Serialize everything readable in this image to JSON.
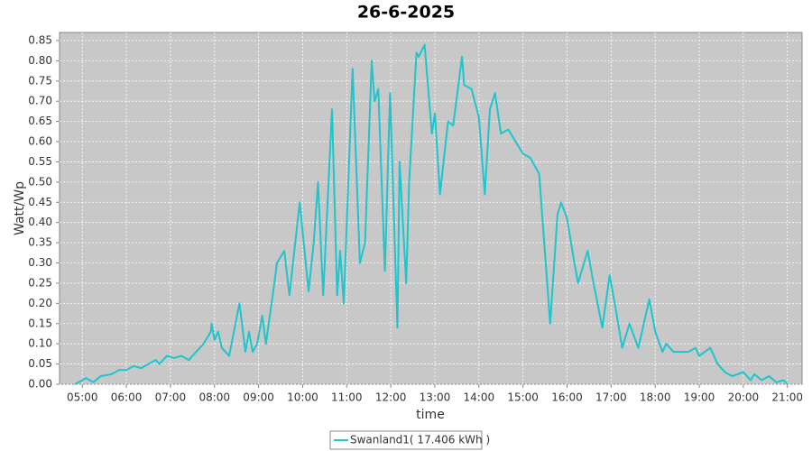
{
  "chart_data": {
    "type": "line",
    "title": "26-6-2025",
    "x_label": "time",
    "y_label": "Watt/Wp",
    "xlim": [
      "04:29",
      "21:20"
    ],
    "xticks": [
      "05:00",
      "06:00",
      "07:00",
      "08:00",
      "09:00",
      "10:00",
      "11:00",
      "12:00",
      "13:00",
      "14:00",
      "15:00",
      "16:00",
      "17:00",
      "18:00",
      "19:00",
      "20:00",
      "21:00"
    ],
    "ylim": [
      0,
      0.87
    ],
    "yticks": [
      {
        "value": 0,
        "label": "0.00"
      },
      {
        "value": 0.05,
        "label": "0.05"
      },
      {
        "value": 0.1,
        "label": "0.10"
      },
      {
        "value": 0.15,
        "label": "0.15"
      },
      {
        "value": 0.2,
        "label": "0.20"
      },
      {
        "value": 0.25,
        "label": "0.25"
      },
      {
        "value": 0.3,
        "label": "0.30"
      },
      {
        "value": 0.35,
        "label": "0.35"
      },
      {
        "value": 0.4,
        "label": "0.40"
      },
      {
        "value": 0.45,
        "label": "0.45"
      },
      {
        "value": 0.5,
        "label": "0.50"
      },
      {
        "value": 0.55,
        "label": "0.55"
      },
      {
        "value": 0.6,
        "label": "0.60"
      },
      {
        "value": 0.65,
        "label": "0.65"
      },
      {
        "value": 0.7,
        "label": "0.70"
      },
      {
        "value": 0.75,
        "label": "0.75"
      },
      {
        "value": 0.8,
        "label": "0.80"
      },
      {
        "value": 0.85,
        "label": "0.85"
      }
    ],
    "grid": true,
    "legend": "bottom",
    "background": "#c8c8c8",
    "x": [
      "04:50",
      "05:00",
      "05:05",
      "05:15",
      "05:25",
      "05:40",
      "05:50",
      "06:00",
      "06:10",
      "06:20",
      "06:30",
      "06:40",
      "06:45",
      "06:55",
      "07:05",
      "07:15",
      "07:25",
      "07:35",
      "07:45",
      "07:55",
      "07:56",
      "08:00",
      "08:05",
      "08:10",
      "08:20",
      "08:34",
      "08:42",
      "08:47",
      "08:52",
      "08:58",
      "09:05",
      "09:10",
      "09:20",
      "09:25",
      "09:35",
      "09:42",
      "09:56",
      "10:08",
      "10:15",
      "10:21",
      "10:28",
      "10:40",
      "10:47",
      "10:51",
      "10:56",
      "11:08",
      "11:18",
      "11:25",
      "11:34",
      "11:38",
      "11:43",
      "11:52",
      "11:59",
      "12:09",
      "12:12",
      "12:21",
      "12:25",
      "12:35",
      "12:38",
      "12:46",
      "12:56",
      "13:00",
      "13:07",
      "13:18",
      "13:25",
      "13:37",
      "13:40",
      "13:50",
      "14:00",
      "14:08",
      "14:15",
      "14:22",
      "14:30",
      "14:40",
      "14:50",
      "15:00",
      "15:10",
      "15:22",
      "15:37",
      "15:47",
      "15:52",
      "16:00",
      "16:10",
      "16:15",
      "16:28",
      "16:35",
      "16:48",
      "16:58",
      "17:05",
      "17:15",
      "17:25",
      "17:37",
      "17:52",
      "18:00",
      "18:10",
      "18:15",
      "18:25",
      "18:45",
      "18:55",
      "19:00",
      "19:15",
      "19:25",
      "19:35",
      "19:45",
      "20:00",
      "20:10",
      "20:15",
      "20:25",
      "20:35",
      "20:45",
      "20:55",
      "21:00"
    ],
    "series": [
      {
        "name": "Swanland1( 17.406 kWh )",
        "color": "#1cc6cc",
        "values": [
          0,
          0.01,
          0.015,
          0.005,
          0.02,
          0.025,
          0.035,
          0.035,
          0.045,
          0.04,
          0.05,
          0.06,
          0.05,
          0.07,
          0.065,
          0.07,
          0.06,
          0.08,
          0.1,
          0.13,
          0.15,
          0.11,
          0.13,
          0.09,
          0.07,
          0.2,
          0.08,
          0.13,
          0.08,
          0.1,
          0.17,
          0.1,
          0.23,
          0.3,
          0.33,
          0.22,
          0.45,
          0.23,
          0.35,
          0.5,
          0.22,
          0.68,
          0.22,
          0.33,
          0.2,
          0.78,
          0.3,
          0.35,
          0.8,
          0.7,
          0.73,
          0.28,
          0.72,
          0.14,
          0.55,
          0.25,
          0.5,
          0.82,
          0.81,
          0.84,
          0.62,
          0.67,
          0.47,
          0.65,
          0.64,
          0.81,
          0.74,
          0.73,
          0.66,
          0.47,
          0.68,
          0.72,
          0.62,
          0.63,
          0.6,
          0.57,
          0.56,
          0.52,
          0.15,
          0.42,
          0.45,
          0.41,
          0.3,
          0.25,
          0.33,
          0.26,
          0.14,
          0.27,
          0.2,
          0.09,
          0.15,
          0.09,
          0.21,
          0.13,
          0.08,
          0.1,
          0.08,
          0.08,
          0.09,
          0.07,
          0.09,
          0.05,
          0.03,
          0.02,
          0.03,
          0.01,
          0.025,
          0.01,
          0.02,
          0.005,
          0.01,
          0
        ]
      }
    ]
  }
}
